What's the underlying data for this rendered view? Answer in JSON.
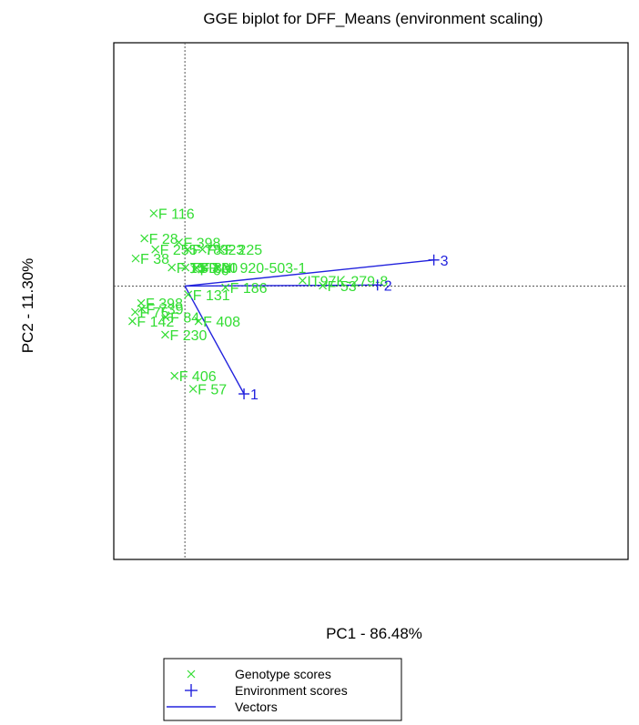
{
  "chart_data": {
    "type": "scatter",
    "title": "GGE biplot for DFF_Means (environment scaling)",
    "xlabel": "PC1 - 86.48%",
    "ylabel": "PC2 - 11.30%",
    "xlim": [
      -1.3,
      8.1
    ],
    "ylim": [
      -5.45,
      4.85
    ],
    "origin_lines": "dotted",
    "colors": {
      "genotype": "#33dd33",
      "environment": "#2222dd",
      "vector": "#2222dd",
      "frame": "#000000",
      "reference": "#555555"
    },
    "legend": {
      "placement": "bottom-center",
      "entries": [
        {
          "label": "Genotype scores",
          "marker": "x",
          "color": "#33dd33"
        },
        {
          "label": "Environment scores",
          "marker": "+",
          "color": "#2222dd"
        },
        {
          "label": "Vectors",
          "marker": "line",
          "color": "#2222dd"
        }
      ]
    },
    "genotypes": [
      {
        "name": "F 116",
        "x": -0.57,
        "y": 1.45
      },
      {
        "name": "F 28",
        "x": -0.74,
        "y": 0.95
      },
      {
        "name": "F 398",
        "x": -0.11,
        "y": 0.87
      },
      {
        "name": "F 255",
        "x": -0.54,
        "y": 0.73
      },
      {
        "name": "F 78",
        "x": 0.05,
        "y": 0.73
      },
      {
        "name": "F 323",
        "x": 0.32,
        "y": 0.73
      },
      {
        "name": "F 225",
        "x": 0.65,
        "y": 0.73
      },
      {
        "name": "F 38",
        "x": -0.9,
        "y": 0.55
      },
      {
        "name": "F 15",
        "x": -0.24,
        "y": 0.37
      },
      {
        "name": "F 80",
        "x": 0.21,
        "y": 0.37
      },
      {
        "name": "TSD",
        "x": 0.01,
        "y": 0.37
      },
      {
        "name": "F 30",
        "x": 0.35,
        "y": 0.37
      },
      {
        "name": "F 66",
        "x": 0.19,
        "y": 0.33
      },
      {
        "name": "NI 920-503-1",
        "x": 0.58,
        "y": 0.37
      },
      {
        "name": "IT97K-279-8",
        "x": 2.15,
        "y": 0.11
      },
      {
        "name": "F 53",
        "x": 2.52,
        "y": 0.01
      },
      {
        "name": "F 186",
        "x": 0.74,
        "y": -0.03
      },
      {
        "name": "F 131",
        "x": 0.06,
        "y": -0.17
      },
      {
        "name": "F 398",
        "x": -0.8,
        "y": -0.34
      },
      {
        "name": "F 75",
        "x": -0.91,
        "y": -0.52
      },
      {
        "name": "F 739",
        "x": -0.79,
        "y": -0.45
      },
      {
        "name": "F 84",
        "x": -0.35,
        "y": -0.62
      },
      {
        "name": "F 142",
        "x": -0.96,
        "y": -0.7
      },
      {
        "name": "F 408",
        "x": 0.25,
        "y": -0.7
      },
      {
        "name": "F 230",
        "x": -0.36,
        "y": -0.97
      },
      {
        "name": "F 406",
        "x": -0.19,
        "y": -1.79
      },
      {
        "name": "F 57",
        "x": 0.15,
        "y": -2.05
      }
    ],
    "environments": [
      {
        "name": "1",
        "x": 1.08,
        "y": -2.15
      },
      {
        "name": "2",
        "x": 3.52,
        "y": 0.02
      },
      {
        "name": "3",
        "x": 4.55,
        "y": 0.52
      }
    ]
  }
}
